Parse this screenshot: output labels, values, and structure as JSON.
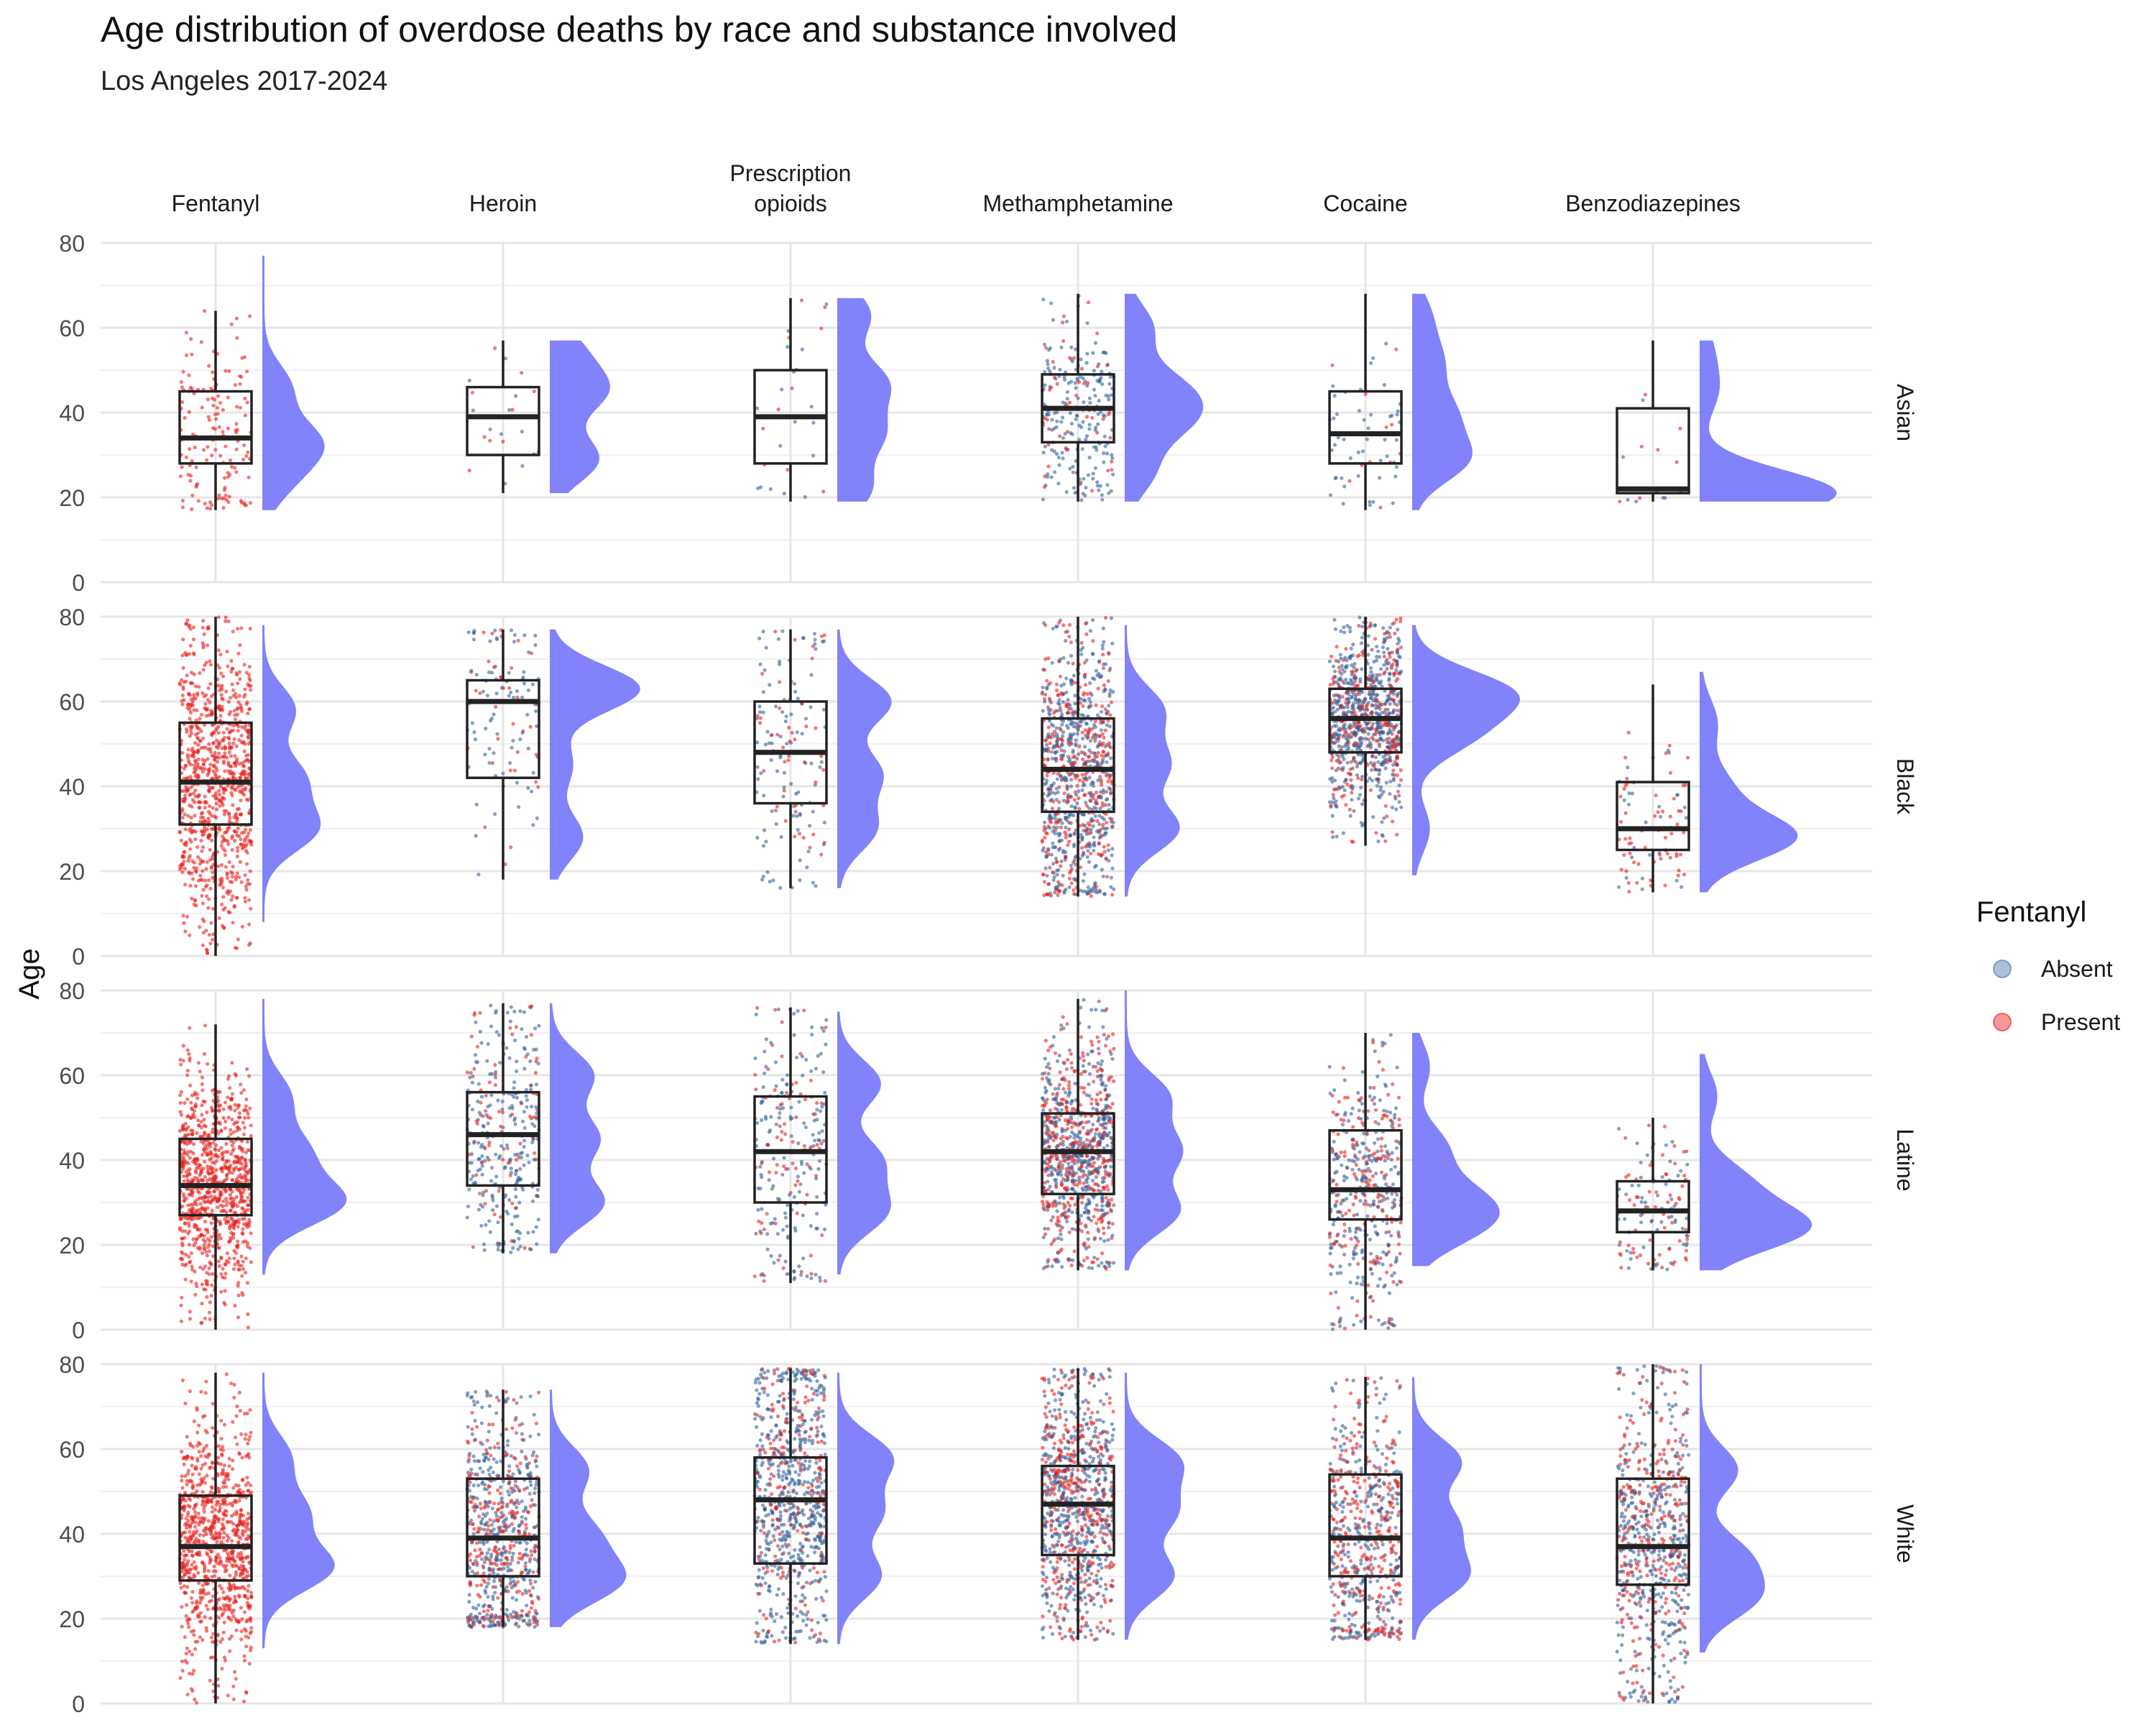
{
  "chart_data": {
    "type": "raincloud",
    "title": "Age distribution of overdose deaths by race and substance involved",
    "subtitle": "Los Angeles 2017-2024",
    "ylabel": "Age",
    "xlabel": "",
    "ylim": [
      0,
      80
    ],
    "yticks": [
      0,
      20,
      40,
      60,
      80
    ],
    "grid": true,
    "columns": [
      "Fentanyl",
      "Heroin",
      "Prescription opioids",
      "Methamphetamine",
      "Cocaine",
      "Benzodiazepines"
    ],
    "rows": [
      "Asian",
      "Black",
      "Latine",
      "White"
    ],
    "legend": {
      "title": "Fentanyl",
      "position": "right",
      "entries": [
        {
          "label": "Absent",
          "color": "#4a74a8"
        },
        {
          "label": "Present",
          "color": "#e8201c"
        }
      ]
    },
    "colors": {
      "absent": "#33609a",
      "present": "#e8201c",
      "density": "#7b7bfa"
    },
    "panels": {
      "Asian": [
        {
          "box": {
            "min": 17,
            "q1": 28,
            "median": 34,
            "q3": 45,
            "max": 64
          },
          "density": {
            "range": [
              17,
              77
            ],
            "peaks": [
              [
                33,
                1.0
              ],
              [
                24,
                0.45
              ],
              [
                46,
                0.5
              ]
            ]
          },
          "n": 150,
          "present_share": 1.0
        },
        {
          "box": {
            "min": 21,
            "q1": 30,
            "median": 39,
            "q3": 46,
            "max": 57
          },
          "density": {
            "range": [
              21,
              57
            ],
            "peaks": [
              [
                29,
                0.9
              ],
              [
                45,
                1.0
              ],
              [
                55,
                0.5
              ]
            ]
          },
          "n": 22,
          "present_share": 0.35
        },
        {
          "box": {
            "min": 19,
            "q1": 28,
            "median": 39,
            "q3": 50,
            "max": 67
          },
          "density": {
            "range": [
              19,
              67
            ],
            "peaks": [
              [
                22,
                0.6
              ],
              [
                35,
                0.8
              ],
              [
                47,
                0.9
              ],
              [
                63,
                0.6
              ]
            ]
          },
          "n": 28,
          "present_share": 0.4
        },
        {
          "box": {
            "min": 19,
            "q1": 33,
            "median": 41,
            "q3": 49,
            "max": 68
          },
          "density": {
            "range": [
              19,
              68
            ],
            "peaks": [
              [
                38,
                1.0
              ],
              [
                46,
                0.9
              ],
              [
                26,
                0.5
              ],
              [
                60,
                0.5
              ]
            ]
          },
          "n": 250,
          "present_share": 0.2
        },
        {
          "box": {
            "min": 17,
            "q1": 28,
            "median": 35,
            "q3": 45,
            "max": 68
          },
          "density": {
            "range": [
              17,
              68
            ],
            "peaks": [
              [
                29,
                1.0
              ],
              [
                40,
                0.7
              ],
              [
                52,
                0.5
              ],
              [
                63,
                0.3
              ]
            ]
          },
          "n": 60,
          "present_share": 0.25
        },
        {
          "box": {
            "min": 19,
            "q1": 21,
            "median": 22,
            "q3": 41,
            "max": 57
          },
          "density": {
            "range": [
              19,
              57
            ],
            "peaks": [
              [
                21,
                2.6
              ],
              [
                45,
                0.3
              ],
              [
                55,
                0.2
              ]
            ]
          },
          "n": 16,
          "present_share": 0.5
        }
      ],
      "Black": [
        {
          "box": {
            "min": 0,
            "q1": 31,
            "median": 41,
            "q3": 55,
            "max": 80
          },
          "density": {
            "range": [
              8,
              78
            ],
            "peaks": [
              [
                30,
                1.0
              ],
              [
                42,
                0.75
              ],
              [
                58,
                0.6
              ]
            ]
          },
          "n": 1500,
          "present_share": 1.0
        },
        {
          "box": {
            "min": 18,
            "q1": 42,
            "median": 60,
            "q3": 65,
            "max": 77
          },
          "density": {
            "range": [
              18,
              77
            ],
            "peaks": [
              [
                63,
                1.7
              ],
              [
                28,
                0.6
              ],
              [
                45,
                0.4
              ]
            ]
          },
          "n": 120,
          "present_share": 0.3
        },
        {
          "box": {
            "min": 16,
            "q1": 36,
            "median": 48,
            "q3": 60,
            "max": 77
          },
          "density": {
            "range": [
              16,
              77
            ],
            "peaks": [
              [
                60,
                1.0
              ],
              [
                43,
                0.8
              ],
              [
                30,
                0.7
              ]
            ]
          },
          "n": 150,
          "present_share": 0.35
        },
        {
          "box": {
            "min": 14,
            "q1": 34,
            "median": 44,
            "q3": 56,
            "max": 80
          },
          "density": {
            "range": [
              14,
              78
            ],
            "peaks": [
              [
                30,
                1.0
              ],
              [
                45,
                0.8
              ],
              [
                58,
                0.7
              ]
            ]
          },
          "n": 1300,
          "present_share": 0.4
        },
        {
          "box": {
            "min": 26,
            "q1": 48,
            "median": 56,
            "q3": 63,
            "max": 80
          },
          "density": {
            "range": [
              19,
              78
            ],
            "peaks": [
              [
                62,
                1.8
              ],
              [
                52,
                1.0
              ],
              [
                30,
                0.3
              ]
            ]
          },
          "n": 950,
          "present_share": 0.35
        },
        {
          "box": {
            "min": 15,
            "q1": 25,
            "median": 30,
            "q3": 41,
            "max": 64
          },
          "density": {
            "range": [
              15,
              67
            ],
            "peaks": [
              [
                28,
                1.8
              ],
              [
                40,
                0.5
              ],
              [
                55,
                0.3
              ]
            ]
          },
          "n": 90,
          "present_share": 0.6
        }
      ],
      "Latine": [
        {
          "box": {
            "min": 0,
            "q1": 27,
            "median": 34,
            "q3": 45,
            "max": 72
          },
          "density": {
            "range": [
              13,
              78
            ],
            "peaks": [
              [
                30,
                1.5
              ],
              [
                42,
                0.8
              ],
              [
                55,
                0.5
              ]
            ]
          },
          "n": 3000,
          "present_share": 1.0
        },
        {
          "box": {
            "min": 18,
            "q1": 34,
            "median": 46,
            "q3": 56,
            "max": 77
          },
          "density": {
            "range": [
              18,
              77
            ],
            "peaks": [
              [
                30,
                1.0
              ],
              [
                45,
                0.9
              ],
              [
                60,
                0.8
              ]
            ]
          },
          "n": 330,
          "present_share": 0.3
        },
        {
          "box": {
            "min": 11,
            "q1": 30,
            "median": 42,
            "q3": 55,
            "max": 76
          },
          "density": {
            "range": [
              13,
              75
            ],
            "peaks": [
              [
                28,
                0.9
              ],
              [
                40,
                0.8
              ],
              [
                58,
                0.8
              ]
            ]
          },
          "n": 250,
          "present_share": 0.35
        },
        {
          "box": {
            "min": 14,
            "q1": 32,
            "median": 42,
            "q3": 51,
            "max": 78
          },
          "density": {
            "range": [
              14,
              80
            ],
            "peaks": [
              [
                28,
                1.0
              ],
              [
                42,
                1.0
              ],
              [
                55,
                0.8
              ]
            ]
          },
          "n": 3500,
          "present_share": 0.45
        },
        {
          "box": {
            "min": 0,
            "q1": 26,
            "median": 33,
            "q3": 47,
            "max": 70
          },
          "density": {
            "range": [
              15,
              70
            ],
            "peaks": [
              [
                24,
                1.0
              ],
              [
                31,
                1.0
              ],
              [
                43,
                0.6
              ],
              [
                62,
                0.3
              ]
            ]
          },
          "n": 450,
          "present_share": 0.4
        },
        {
          "box": {
            "min": 14,
            "q1": 23,
            "median": 28,
            "q3": 35,
            "max": 50
          },
          "density": {
            "range": [
              14,
              65
            ],
            "peaks": [
              [
                24,
                2.0
              ],
              [
                35,
                0.8
              ],
              [
                55,
                0.3
              ]
            ]
          },
          "n": 130,
          "present_share": 0.55
        }
      ],
      "White": [
        {
          "box": {
            "min": 0,
            "q1": 29,
            "median": 37,
            "q3": 49,
            "max": 78
          },
          "density": {
            "range": [
              13,
              78
            ],
            "peaks": [
              [
                32,
                1.3
              ],
              [
                45,
                0.8
              ],
              [
                58,
                0.5
              ]
            ]
          },
          "n": 2600,
          "present_share": 1.0
        },
        {
          "box": {
            "min": 18,
            "q1": 30,
            "median": 39,
            "q3": 53,
            "max": 74
          },
          "density": {
            "range": [
              18,
              74
            ],
            "peaks": [
              [
                29,
                1.3
              ],
              [
                40,
                0.8
              ],
              [
                55,
                0.7
              ]
            ]
          },
          "n": 700,
          "present_share": 0.4
        },
        {
          "box": {
            "min": 14,
            "q1": 33,
            "median": 48,
            "q3": 58,
            "max": 79
          },
          "density": {
            "range": [
              14,
              78
            ],
            "peaks": [
              [
                30,
                0.8
              ],
              [
                45,
                0.8
              ],
              [
                58,
                1.0
              ]
            ]
          },
          "n": 800,
          "present_share": 0.25
        },
        {
          "box": {
            "min": 15,
            "q1": 35,
            "median": 47,
            "q3": 56,
            "max": 79
          },
          "density": {
            "range": [
              15,
              78
            ],
            "peaks": [
              [
                30,
                0.9
              ],
              [
                45,
                0.9
              ],
              [
                57,
                1.0
              ]
            ]
          },
          "n": 3500,
          "present_share": 0.45
        },
        {
          "box": {
            "min": 15,
            "q1": 30,
            "median": 39,
            "q3": 54,
            "max": 77
          },
          "density": {
            "range": [
              15,
              77
            ],
            "peaks": [
              [
                30,
                1.0
              ],
              [
                42,
                0.8
              ],
              [
                57,
                0.9
              ]
            ]
          },
          "n": 600,
          "present_share": 0.5
        },
        {
          "box": {
            "min": 0,
            "q1": 28,
            "median": 37,
            "q3": 53,
            "max": 80
          },
          "density": {
            "range": [
              12,
              80
            ],
            "peaks": [
              [
                25,
                1.0
              ],
              [
                35,
                0.8
              ],
              [
                55,
                0.7
              ]
            ]
          },
          "n": 700,
          "present_share": 0.4
        }
      ]
    }
  }
}
